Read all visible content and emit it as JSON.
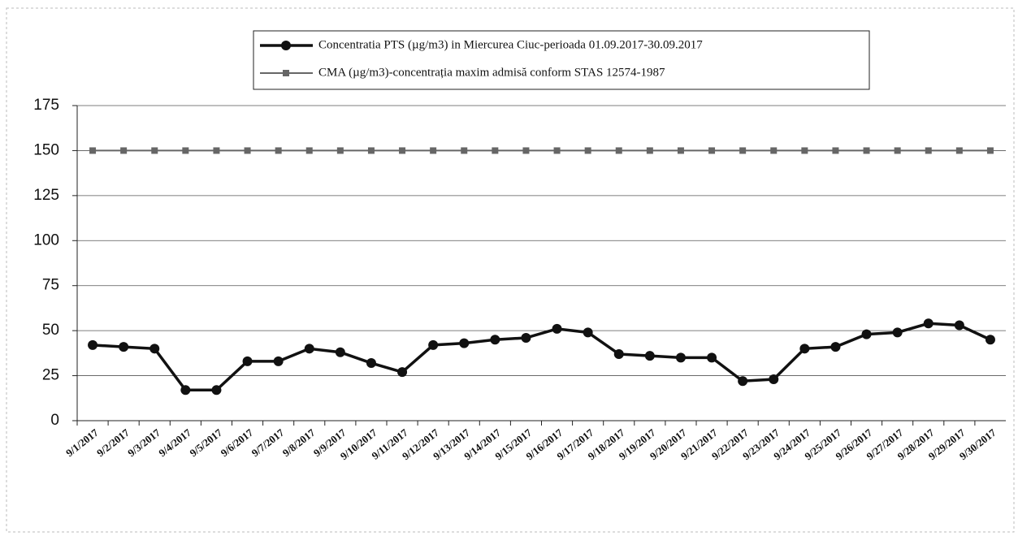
{
  "chart_data": {
    "type": "line",
    "categories": [
      "9/1/2017",
      "9/2/2017",
      "9/3/2017",
      "9/4/2017",
      "9/5/2017",
      "9/6/2017",
      "9/7/2017",
      "9/8/2017",
      "9/9/2017",
      "9/10/2017",
      "9/11/2017",
      "9/12/2017",
      "9/13/2017",
      "9/14/2017",
      "9/15/2017",
      "9/16/2017",
      "9/17/2017",
      "9/18/2017",
      "9/19/2017",
      "9/20/2017",
      "9/21/2017",
      "9/22/2017",
      "9/23/2017",
      "9/24/2017",
      "9/25/2017",
      "9/26/2017",
      "9/27/2017",
      "9/28/2017",
      "9/29/2017",
      "9/30/2017"
    ],
    "series": [
      {
        "name": "Concentratia PTS (µg/m3) in Miercurea Ciuc-perioada 01.09.2017-30.09.2017",
        "color": "#111111",
        "marker": "circle",
        "values": [
          42,
          41,
          40,
          17,
          17,
          33,
          33,
          40,
          38,
          32,
          27,
          42,
          43,
          45,
          46,
          51,
          49,
          37,
          36,
          35,
          35,
          22,
          23,
          40,
          41,
          48,
          49,
          54,
          53,
          45
        ]
      },
      {
        "name": "CMA (µg/m3)-concentrația maxim admisă conform STAS 12574-1987",
        "color": "#666666",
        "marker": "square",
        "values": [
          150,
          150,
          150,
          150,
          150,
          150,
          150,
          150,
          150,
          150,
          150,
          150,
          150,
          150,
          150,
          150,
          150,
          150,
          150,
          150,
          150,
          150,
          150,
          150,
          150,
          150,
          150,
          150,
          150,
          150
        ]
      }
    ],
    "ylim": [
      0,
      175
    ],
    "yticks": [
      0,
      25,
      50,
      75,
      100,
      125,
      150,
      175
    ],
    "grid": true,
    "legend": "top"
  }
}
